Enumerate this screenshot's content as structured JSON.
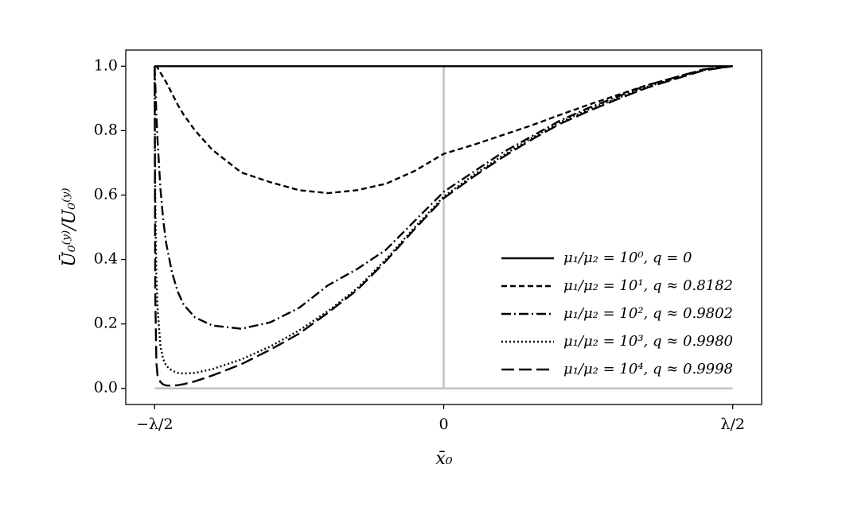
{
  "chart_data": {
    "type": "line",
    "xlabel": "x̄₀",
    "ylabel": "Ū₀⁽ʸ⁾/U₀⁽ʸ⁾",
    "x": [
      -0.5,
      -0.499,
      -0.497,
      -0.495,
      -0.49,
      -0.485,
      -0.48,
      -0.47,
      -0.46,
      -0.45,
      -0.43,
      -0.4,
      -0.35,
      -0.3,
      -0.25,
      -0.2,
      -0.15,
      -0.1,
      -0.05,
      0,
      0.05,
      0.1,
      0.15,
      0.2,
      0.25,
      0.3,
      0.35,
      0.4,
      0.45,
      0.5
    ],
    "series": [
      {
        "name": "μ₁/μ₂ = 10⁰,  q = 0",
        "color": "#000000",
        "dash": "none",
        "values": [
          1,
          1,
          1,
          1,
          1,
          1,
          1,
          1,
          1,
          1,
          1,
          1,
          1,
          1,
          1,
          1,
          1,
          1,
          1,
          1,
          1,
          1,
          1,
          1,
          1,
          1,
          1,
          1,
          1,
          1
        ]
      },
      {
        "name": "μ₁/μ₂ = 10¹,  q ≈ 0.8182",
        "color": "#000000",
        "dash": "7,4",
        "values": [
          1.0,
          1.0,
          0.999,
          0.995,
          0.98,
          0.965,
          0.95,
          0.915,
          0.88,
          0.85,
          0.8,
          0.74,
          0.67,
          0.64,
          0.615,
          0.606,
          0.615,
          0.635,
          0.675,
          0.728,
          0.755,
          0.785,
          0.815,
          0.848,
          0.88,
          0.91,
          0.94,
          0.965,
          0.99,
          1.0
        ]
      },
      {
        "name": "μ₁/μ₂ = 10²,  q ≈ 0.9802",
        "color": "#000000",
        "dash": "12,4,2,4",
        "values": [
          1.0,
          0.95,
          0.85,
          0.77,
          0.62,
          0.52,
          0.45,
          0.36,
          0.3,
          0.26,
          0.22,
          0.195,
          0.185,
          0.205,
          0.25,
          0.32,
          0.37,
          0.43,
          0.52,
          0.61,
          0.67,
          0.73,
          0.78,
          0.83,
          0.87,
          0.905,
          0.94,
          0.965,
          0.99,
          1.0
        ]
      },
      {
        "name": "μ₁/μ₂ = 10³,  q ≈ 0.9980",
        "color": "#000000",
        "dash": "2,3",
        "values": [
          1.0,
          0.6,
          0.35,
          0.25,
          0.13,
          0.09,
          0.07,
          0.055,
          0.048,
          0.046,
          0.048,
          0.06,
          0.09,
          0.13,
          0.18,
          0.24,
          0.31,
          0.4,
          0.5,
          0.595,
          0.66,
          0.72,
          0.775,
          0.825,
          0.865,
          0.9,
          0.935,
          0.962,
          0.988,
          1.0
        ]
      },
      {
        "name": "μ₁/μ₂ = 10⁴,  q ≈ 0.9998",
        "color": "#000000",
        "dash": "16,6",
        "values": [
          1.0,
          0.3,
          0.08,
          0.04,
          0.02,
          0.012,
          0.009,
          0.008,
          0.01,
          0.013,
          0.022,
          0.04,
          0.075,
          0.12,
          0.17,
          0.235,
          0.305,
          0.395,
          0.495,
          0.59,
          0.655,
          0.715,
          0.77,
          0.82,
          0.86,
          0.897,
          0.932,
          0.96,
          0.987,
          1.0
        ]
      }
    ],
    "xlim": [
      -0.55,
      0.55
    ],
    "ylim": [
      -0.05,
      1.05
    ],
    "xticks": [
      {
        "value": -0.5,
        "label": "−λ/2"
      },
      0,
      {
        "value": 0.5,
        "label": "λ/2"
      }
    ],
    "yticks": [
      {
        "value": 0,
        "label": "0.0"
      },
      0.2,
      0.4,
      0.6,
      0.8,
      {
        "value": 1,
        "label": "1.0"
      }
    ],
    "legend": "lower right",
    "reference_color": "#c0c0c0"
  }
}
